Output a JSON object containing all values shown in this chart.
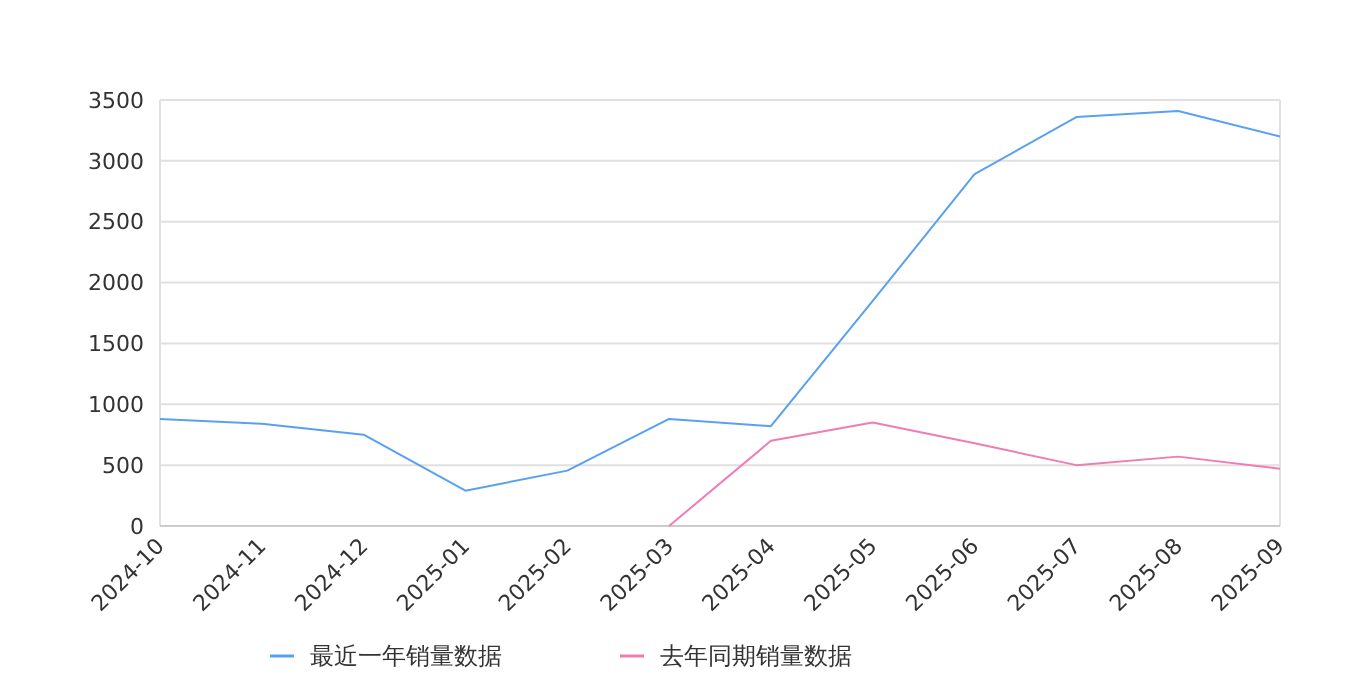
{
  "chart_data": {
    "type": "line",
    "categories": [
      "2024-10",
      "2024-11",
      "2024-12",
      "2025-01",
      "2025-02",
      "2025-03",
      "2025-04",
      "2025-05",
      "2025-06",
      "2025-07",
      "2025-08",
      "2025-09"
    ],
    "series": [
      {
        "name": "最近一年销量数据",
        "color": "#5aa0f0",
        "values": [
          880,
          840,
          750,
          290,
          455,
          880,
          820,
          1850,
          2890,
          3360,
          3410,
          3200
        ]
      },
      {
        "name": "去年同期销量数据",
        "color": "#f07cb4",
        "values": [
          null,
          null,
          null,
          null,
          null,
          0,
          700,
          850,
          680,
          500,
          570,
          470
        ]
      }
    ],
    "ylim": [
      0,
      3500
    ],
    "yticks": [
      0,
      500,
      1000,
      1500,
      2000,
      2500,
      3000,
      3500
    ],
    "grid": "y",
    "legend": "bottom",
    "marker": "none",
    "line_style": "solid"
  }
}
